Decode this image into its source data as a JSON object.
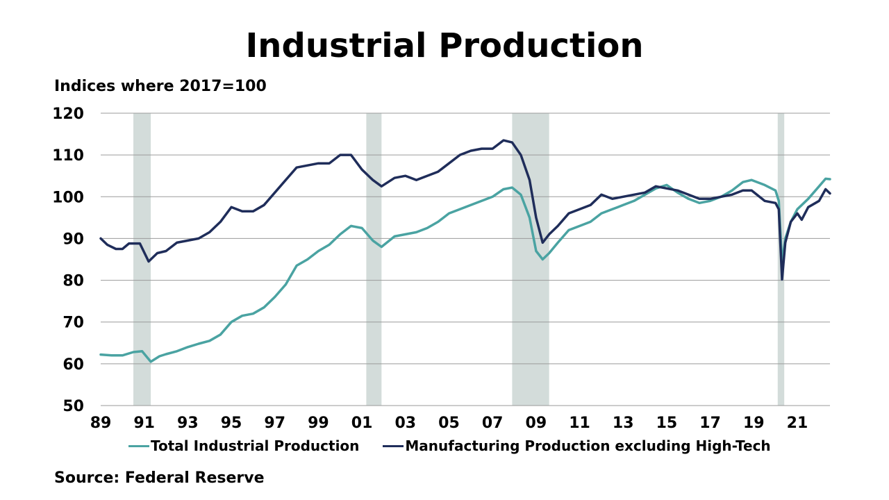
{
  "title": "Industrial Production",
  "subtitle": "Indices where 2017=100",
  "source": "Source: Federal Reserve",
  "colors": {
    "total": "#4aa3a2",
    "manufacturing": "#1f2d5a",
    "recession": "#d3dcda",
    "grid": "#9a9a9a"
  },
  "chart_data": {
    "type": "line",
    "title": "Industrial Production",
    "ylabel": "",
    "xlabel": "",
    "ylim": [
      50,
      120
    ],
    "xlim": [
      1989.0,
      2022.5
    ],
    "y_ticks": [
      50,
      60,
      70,
      80,
      90,
      100,
      110,
      120
    ],
    "x_ticks": [
      {
        "year": 1989,
        "label": "89"
      },
      {
        "year": 1991,
        "label": "91"
      },
      {
        "year": 1993,
        "label": "93"
      },
      {
        "year": 1995,
        "label": "95"
      },
      {
        "year": 1997,
        "label": "97"
      },
      {
        "year": 1999,
        "label": "99"
      },
      {
        "year": 2001,
        "label": "01"
      },
      {
        "year": 2003,
        "label": "03"
      },
      {
        "year": 2005,
        "label": "05"
      },
      {
        "year": 2007,
        "label": "07"
      },
      {
        "year": 2009,
        "label": "09"
      },
      {
        "year": 2011,
        "label": "11"
      },
      {
        "year": 2013,
        "label": "13"
      },
      {
        "year": 2015,
        "label": "15"
      },
      {
        "year": 2017,
        "label": "17"
      },
      {
        "year": 2019,
        "label": "19"
      },
      {
        "year": 2021,
        "label": "21"
      }
    ],
    "grid": true,
    "legend": "bottom",
    "shaded_periods": [
      [
        1990.5,
        1991.3
      ],
      [
        2001.2,
        2001.9
      ],
      [
        2007.9,
        2009.6
      ],
      [
        2020.1,
        2020.4
      ]
    ],
    "series": [
      {
        "name": "Total Industrial Production",
        "color_key": "total",
        "points": [
          [
            1989.0,
            62.2
          ],
          [
            1989.5,
            62.0
          ],
          [
            1990.0,
            62.0
          ],
          [
            1990.5,
            62.8
          ],
          [
            1990.9,
            63.0
          ],
          [
            1991.3,
            60.5
          ],
          [
            1991.7,
            61.8
          ],
          [
            1992.0,
            62.3
          ],
          [
            1992.5,
            63.0
          ],
          [
            1993.0,
            64.0
          ],
          [
            1993.5,
            64.8
          ],
          [
            1994.0,
            65.5
          ],
          [
            1994.5,
            67.0
          ],
          [
            1995.0,
            70.0
          ],
          [
            1995.5,
            71.5
          ],
          [
            1996.0,
            72.0
          ],
          [
            1996.5,
            73.5
          ],
          [
            1997.0,
            76.0
          ],
          [
            1997.5,
            79.0
          ],
          [
            1998.0,
            83.5
          ],
          [
            1998.5,
            85.0
          ],
          [
            1999.0,
            87.0
          ],
          [
            1999.5,
            88.5
          ],
          [
            2000.0,
            91.0
          ],
          [
            2000.5,
            93.0
          ],
          [
            2001.0,
            92.5
          ],
          [
            2001.5,
            89.5
          ],
          [
            2001.9,
            88.0
          ],
          [
            2002.5,
            90.5
          ],
          [
            2003.0,
            91.0
          ],
          [
            2003.5,
            91.5
          ],
          [
            2004.0,
            92.5
          ],
          [
            2004.5,
            94.0
          ],
          [
            2005.0,
            96.0
          ],
          [
            2005.5,
            97.0
          ],
          [
            2006.0,
            98.0
          ],
          [
            2006.5,
            99.0
          ],
          [
            2007.0,
            100.0
          ],
          [
            2007.5,
            101.8
          ],
          [
            2007.9,
            102.2
          ],
          [
            2008.3,
            100.5
          ],
          [
            2008.7,
            95.0
          ],
          [
            2009.0,
            87.0
          ],
          [
            2009.3,
            85.0
          ],
          [
            2009.6,
            86.5
          ],
          [
            2010.0,
            89.0
          ],
          [
            2010.5,
            92.0
          ],
          [
            2011.0,
            93.0
          ],
          [
            2011.5,
            94.0
          ],
          [
            2012.0,
            96.0
          ],
          [
            2012.5,
            97.0
          ],
          [
            2013.0,
            98.0
          ],
          [
            2013.5,
            99.0
          ],
          [
            2014.0,
            100.5
          ],
          [
            2014.5,
            102.0
          ],
          [
            2015.0,
            102.8
          ],
          [
            2015.5,
            101.0
          ],
          [
            2016.0,
            99.5
          ],
          [
            2016.5,
            98.5
          ],
          [
            2017.0,
            99.0
          ],
          [
            2017.5,
            100.0
          ],
          [
            2018.0,
            101.5
          ],
          [
            2018.5,
            103.5
          ],
          [
            2018.9,
            104.0
          ],
          [
            2019.5,
            102.8
          ],
          [
            2020.0,
            101.5
          ],
          [
            2020.15,
            99.0
          ],
          [
            2020.3,
            84.0
          ],
          [
            2020.45,
            90.0
          ],
          [
            2020.7,
            94.0
          ],
          [
            2021.0,
            97.0
          ],
          [
            2021.5,
            99.5
          ],
          [
            2022.0,
            102.5
          ],
          [
            2022.3,
            104.3
          ],
          [
            2022.5,
            104.2
          ]
        ]
      },
      {
        "name": "Manufacturing Production excluding High-Tech",
        "color_key": "manufacturing",
        "points": [
          [
            1989.0,
            90.0
          ],
          [
            1989.3,
            88.5
          ],
          [
            1989.7,
            87.5
          ],
          [
            1990.0,
            87.5
          ],
          [
            1990.3,
            88.8
          ],
          [
            1990.8,
            88.8
          ],
          [
            1991.2,
            84.5
          ],
          [
            1991.6,
            86.5
          ],
          [
            1992.0,
            87.0
          ],
          [
            1992.5,
            89.0
          ],
          [
            1993.0,
            89.5
          ],
          [
            1993.5,
            90.0
          ],
          [
            1994.0,
            91.5
          ],
          [
            1994.5,
            94.0
          ],
          [
            1995.0,
            97.5
          ],
          [
            1995.5,
            96.5
          ],
          [
            1996.0,
            96.5
          ],
          [
            1996.5,
            98.0
          ],
          [
            1997.0,
            101.0
          ],
          [
            1997.5,
            104.0
          ],
          [
            1998.0,
            107.0
          ],
          [
            1998.5,
            107.5
          ],
          [
            1999.0,
            108.0
          ],
          [
            1999.5,
            108.0
          ],
          [
            2000.0,
            110.0
          ],
          [
            2000.5,
            110.0
          ],
          [
            2001.0,
            106.5
          ],
          [
            2001.5,
            104.0
          ],
          [
            2001.9,
            102.5
          ],
          [
            2002.5,
            104.5
          ],
          [
            2003.0,
            105.0
          ],
          [
            2003.5,
            104.0
          ],
          [
            2004.0,
            105.0
          ],
          [
            2004.5,
            106.0
          ],
          [
            2005.0,
            108.0
          ],
          [
            2005.5,
            110.0
          ],
          [
            2006.0,
            111.0
          ],
          [
            2006.5,
            111.5
          ],
          [
            2007.0,
            111.5
          ],
          [
            2007.5,
            113.5
          ],
          [
            2007.9,
            113.0
          ],
          [
            2008.3,
            110.0
          ],
          [
            2008.7,
            104.0
          ],
          [
            2009.0,
            95.0
          ],
          [
            2009.3,
            89.0
          ],
          [
            2009.6,
            91.0
          ],
          [
            2010.0,
            93.0
          ],
          [
            2010.5,
            96.0
          ],
          [
            2011.0,
            97.0
          ],
          [
            2011.5,
            98.0
          ],
          [
            2012.0,
            100.5
          ],
          [
            2012.5,
            99.5
          ],
          [
            2013.0,
            100.0
          ],
          [
            2013.5,
            100.5
          ],
          [
            2014.0,
            101.0
          ],
          [
            2014.5,
            102.5
          ],
          [
            2015.0,
            102.0
          ],
          [
            2015.5,
            101.5
          ],
          [
            2016.0,
            100.5
          ],
          [
            2016.5,
            99.5
          ],
          [
            2017.0,
            99.5
          ],
          [
            2017.5,
            100.0
          ],
          [
            2018.0,
            100.5
          ],
          [
            2018.5,
            101.5
          ],
          [
            2018.9,
            101.5
          ],
          [
            2019.5,
            99.0
          ],
          [
            2020.0,
            98.5
          ],
          [
            2020.15,
            97.0
          ],
          [
            2020.3,
            80.2
          ],
          [
            2020.45,
            89.0
          ],
          [
            2020.7,
            94.0
          ],
          [
            2021.0,
            96.0
          ],
          [
            2021.2,
            94.5
          ],
          [
            2021.5,
            97.5
          ],
          [
            2022.0,
            99.0
          ],
          [
            2022.3,
            101.8
          ],
          [
            2022.5,
            100.8
          ]
        ]
      }
    ]
  },
  "legend": {
    "total_label": "Total Industrial Production",
    "manufacturing_label": "Manufacturing Production excluding High-Tech"
  }
}
